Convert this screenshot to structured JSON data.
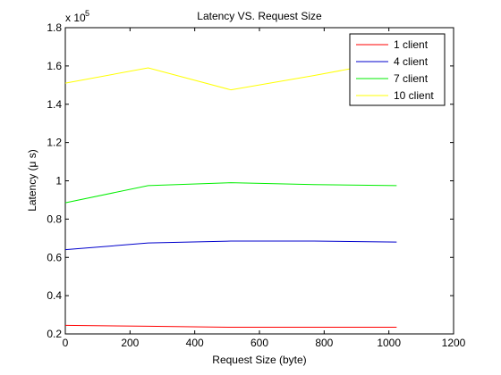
{
  "chart_data": {
    "type": "line",
    "title": "Latency VS. Request Size",
    "xlabel": "Request Size (byte)",
    "ylabel": "Latency (μ s)",
    "xlim": [
      0,
      1200
    ],
    "ylim": [
      20000,
      180000
    ],
    "y_exponent_label": "x 10",
    "y_exponent_power": "5",
    "x_ticks": [
      {
        "value": 0,
        "label": "0"
      },
      {
        "value": 200,
        "label": "200"
      },
      {
        "value": 400,
        "label": "400"
      },
      {
        "value": 600,
        "label": "600"
      },
      {
        "value": 800,
        "label": "800"
      },
      {
        "value": 1000,
        "label": "1000"
      },
      {
        "value": 1200,
        "label": "1200"
      }
    ],
    "y_ticks": [
      {
        "value": 20000,
        "label": "0.2"
      },
      {
        "value": 40000,
        "label": "0.4"
      },
      {
        "value": 60000,
        "label": "0.6"
      },
      {
        "value": 80000,
        "label": "0.8"
      },
      {
        "value": 100000,
        "label": "1"
      },
      {
        "value": 120000,
        "label": "1.2"
      },
      {
        "value": 140000,
        "label": "1.4"
      },
      {
        "value": 160000,
        "label": "1.6"
      },
      {
        "value": 180000,
        "label": "1.8"
      }
    ],
    "grid": false,
    "legend_position": "top-right",
    "x": [
      0,
      256,
      512,
      768,
      1024
    ],
    "series": [
      {
        "name": "1 client",
        "color": "#ff0000",
        "values": [
          24500,
          24000,
          23500,
          23500,
          23500
        ]
      },
      {
        "name": "4 client",
        "color": "#0000cc",
        "values": [
          64000,
          67500,
          68500,
          68500,
          68000
        ]
      },
      {
        "name": "7 client",
        "color": "#00ee00",
        "values": [
          88500,
          97500,
          99000,
          98000,
          97500
        ]
      },
      {
        "name": "10 client",
        "color": "#ffff00",
        "values": [
          151000,
          159000,
          147500,
          155000,
          163000
        ]
      }
    ]
  }
}
